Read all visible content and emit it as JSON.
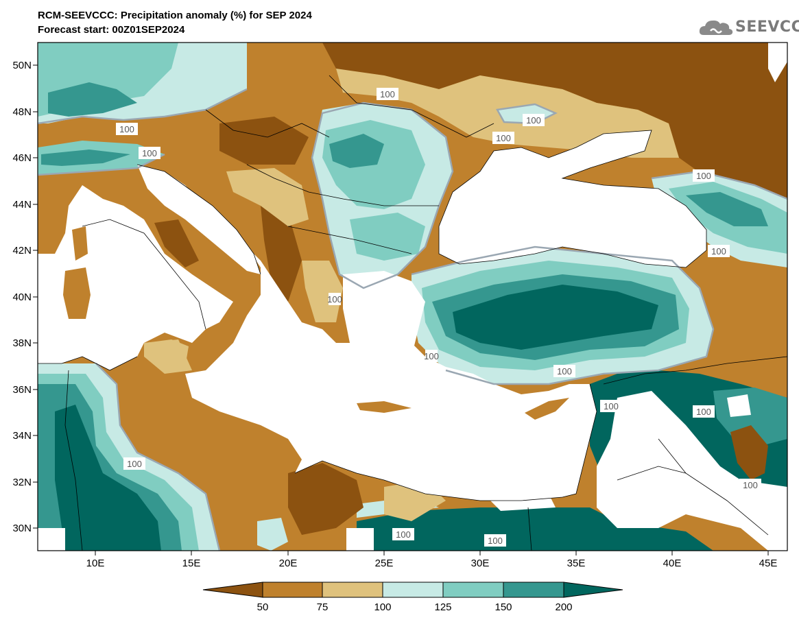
{
  "title_line1": "RCM-SEEVCCC: Precipitation anomaly (%) for SEP 2024",
  "title_line2": "Forecast start: 00Z01SEP2024",
  "logo_text": "SEEVCCC",
  "colors": {
    "lt50": "#8c5210",
    "b50_75": "#bf812d",
    "b75_100": "#dfc27d",
    "b100_125": "#c7eae5",
    "b125_150": "#80cdc1",
    "b150_200": "#35978f",
    "gt200": "#01665e",
    "contour100": "#9aa7b2",
    "sea": "#ffffff"
  },
  "lat_labels": [
    "50N",
    "48N",
    "46N",
    "44N",
    "42N",
    "40N",
    "38N",
    "36N",
    "34N",
    "32N",
    "30N"
  ],
  "lon_labels": [
    "10E",
    "15E",
    "20E",
    "25E",
    "30E",
    "35E",
    "40E",
    "45E"
  ],
  "contour_labels": [
    "100",
    "100",
    "100",
    "100",
    "100",
    "100",
    "100",
    "100",
    "100",
    "100",
    "100",
    "100",
    "100",
    "100",
    "100",
    "100"
  ],
  "colorbar": {
    "tick_labels": [
      "50",
      "75",
      "100",
      "125",
      "150",
      "200"
    ]
  }
}
